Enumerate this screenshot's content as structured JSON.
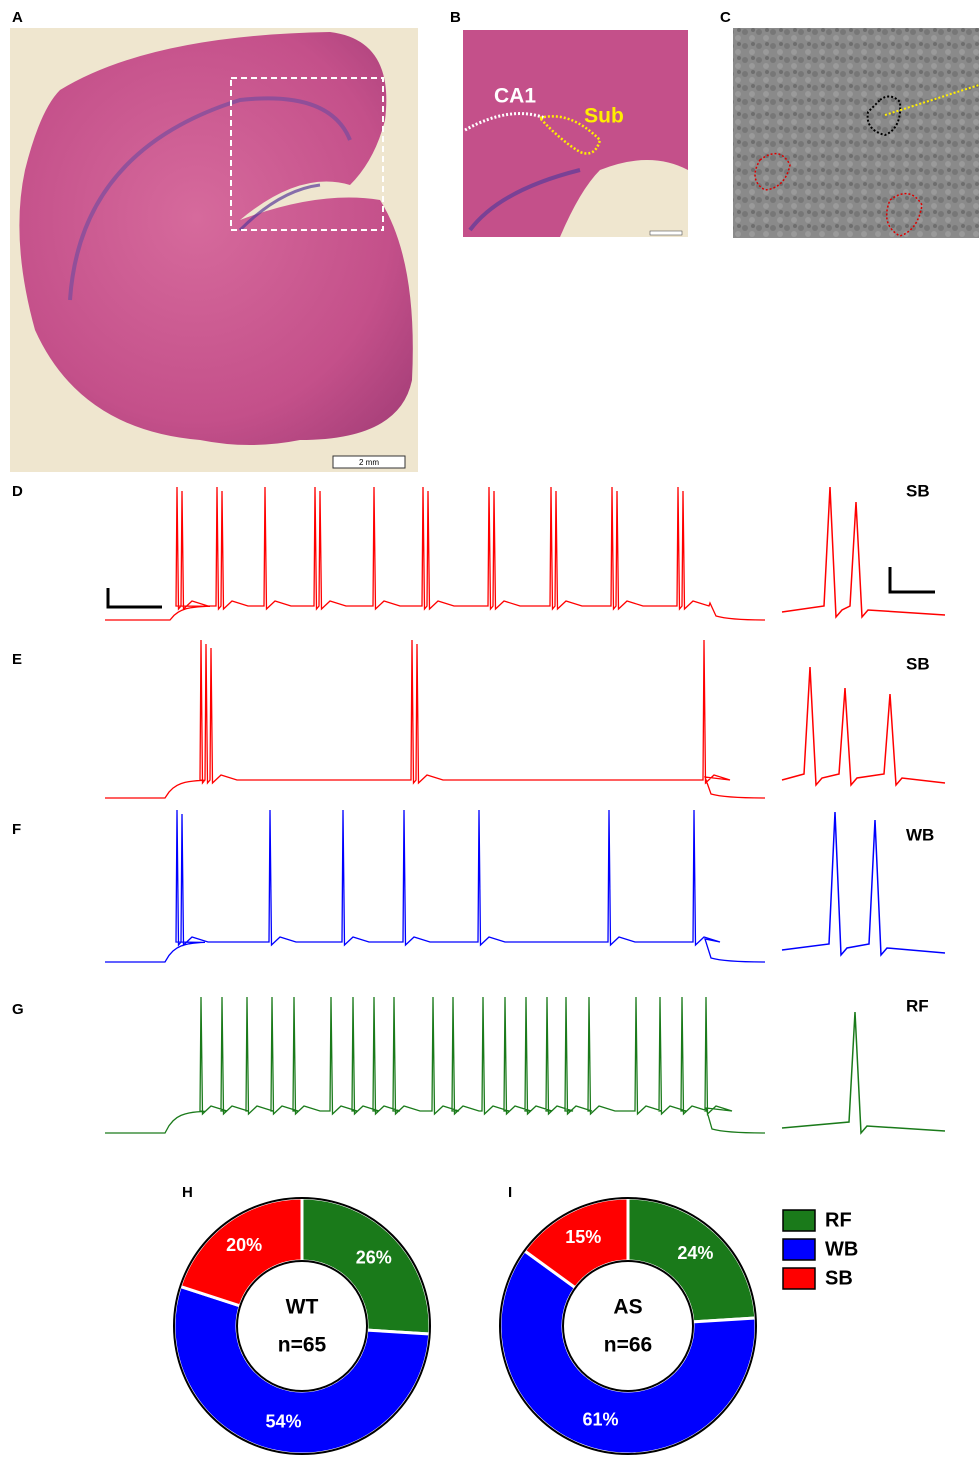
{
  "panels": {
    "A": {
      "label": "A",
      "scale_bar": "2 mm"
    },
    "B": {
      "label": "B",
      "region_labels": [
        "CA1",
        "Sub"
      ]
    },
    "C": {
      "label": "C"
    }
  },
  "traces": [
    {
      "label": "D",
      "type": "SB",
      "color": "#ff0000"
    },
    {
      "label": "E",
      "type": "SB",
      "color": "#ff0000"
    },
    {
      "label": "F",
      "type": "WB",
      "color": "#0000ff"
    },
    {
      "label": "G",
      "type": "RF",
      "color": "#1a7a1a"
    }
  ],
  "legend": {
    "labels": [
      "RF",
      "WB",
      "SB"
    ],
    "colors": [
      "#1a7a1a",
      "#0000ff",
      "#ff0000"
    ]
  },
  "chart_data": [
    {
      "type": "pie",
      "label": "H",
      "center_text": [
        "WT",
        "n=65"
      ],
      "values": [
        26,
        54,
        20
      ],
      "value_labels": [
        "26%",
        "54%",
        "20%"
      ]
    },
    {
      "type": "pie",
      "label": "I",
      "center_text": [
        "AS",
        "n=66"
      ],
      "values": [
        24,
        61,
        15
      ],
      "value_labels": [
        "24%",
        "61%",
        "15%"
      ]
    }
  ]
}
